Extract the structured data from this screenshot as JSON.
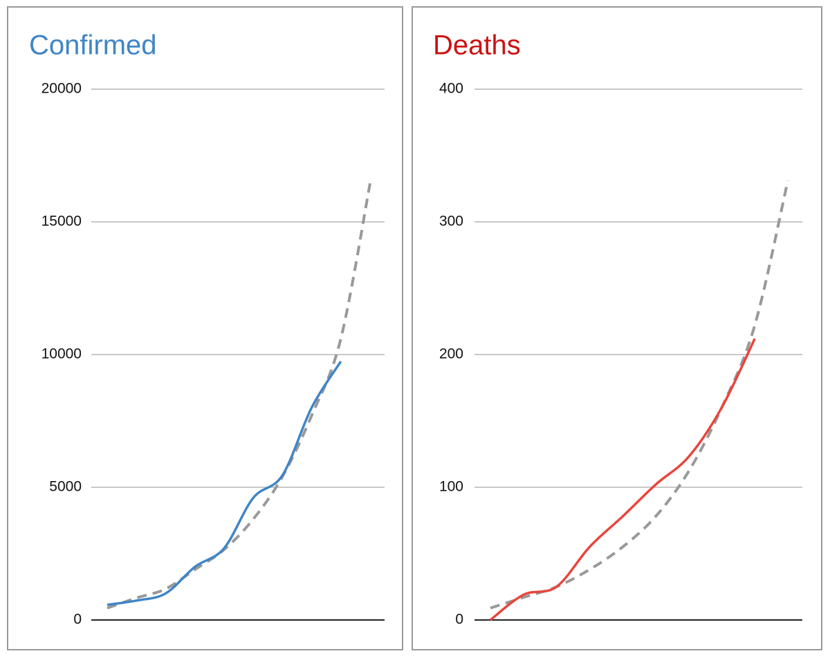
{
  "chart_data": [
    {
      "type": "line",
      "title": "Confirmed",
      "title_color": "#3f85c5",
      "ylim": [
        0,
        20000
      ],
      "yticks": [
        0,
        5000,
        10000,
        15000,
        20000
      ],
      "grid": true,
      "series": [
        {
          "color": "#3f85c5",
          "style": "solid",
          "values": [
            570,
            730,
            1000,
            2000,
            2700,
            4600,
            5450,
            8000,
            9740
          ]
        },
        {
          "color": "#999999",
          "style": "dashed",
          "values": [
            450,
            830,
            1170,
            1900,
            2650,
            3800,
            5400,
            7700,
            10600,
            16450
          ]
        }
      ]
    },
    {
      "type": "line",
      "title": "Deaths",
      "title_color": "#cc1111",
      "ylim": [
        0,
        400
      ],
      "yticks": [
        0,
        100,
        200,
        300,
        400
      ],
      "grid": true,
      "series": [
        {
          "color": "#e8453c",
          "style": "solid",
          "values": [
            0,
            19,
            25,
            55,
            78,
            102,
            123,
            160,
            212
          ]
        },
        {
          "color": "#999999",
          "style": "dashed",
          "values": [
            9,
            17,
            25,
            38,
            55,
            78,
            112,
            160,
            222,
            331
          ]
        }
      ]
    }
  ]
}
